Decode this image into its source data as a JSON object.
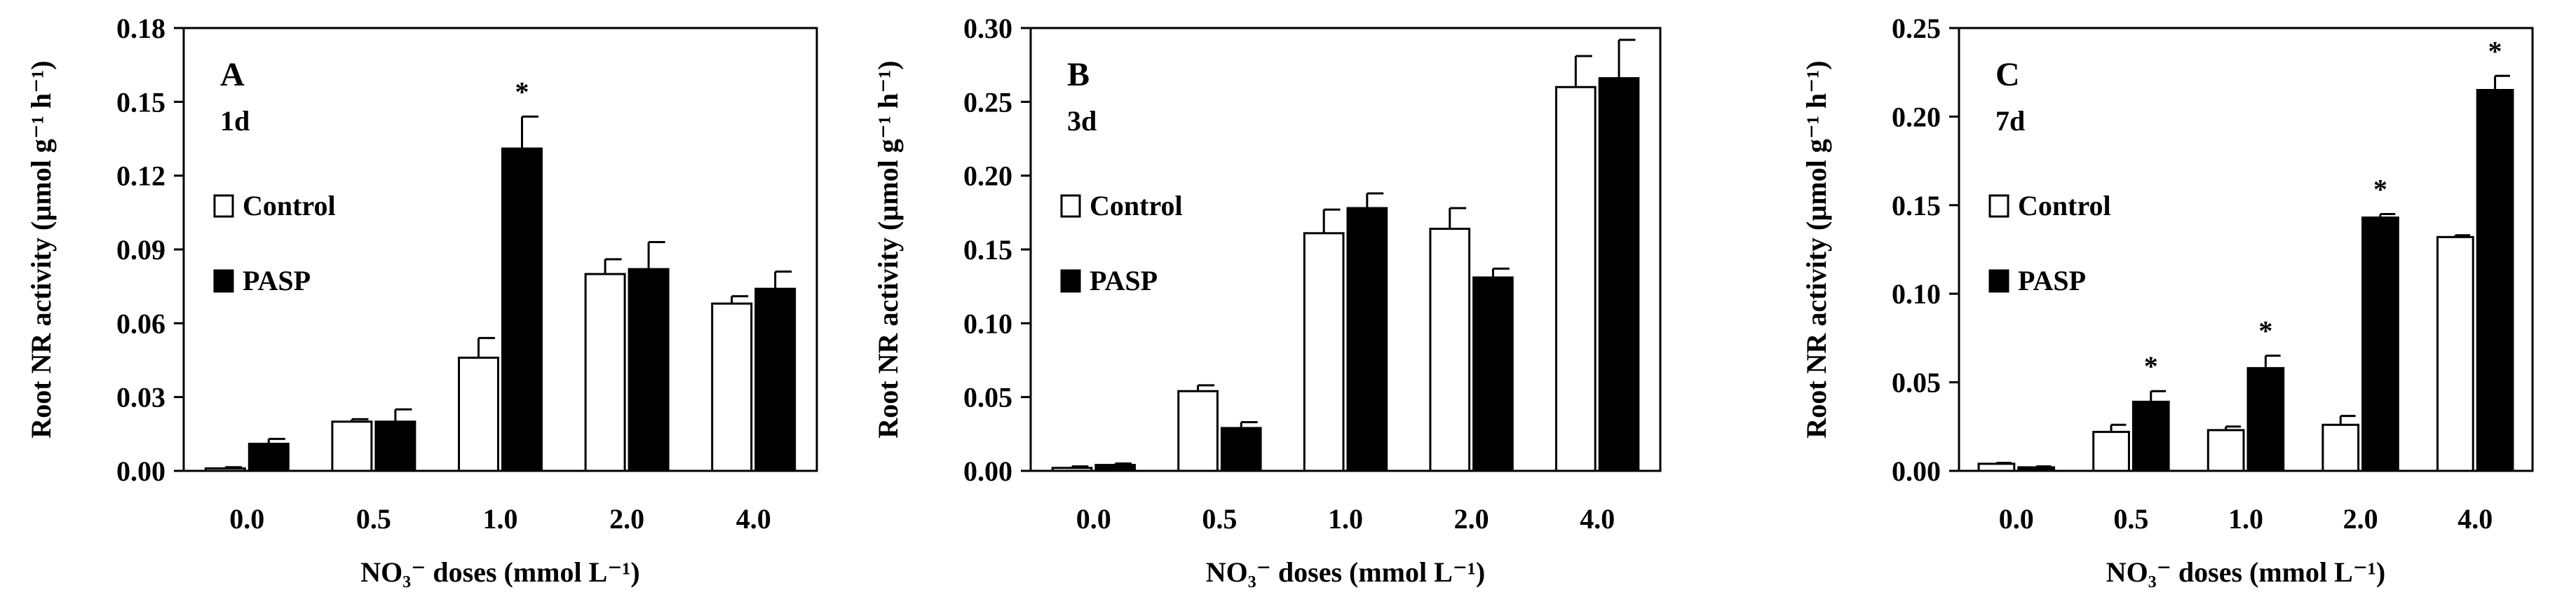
{
  "chart_data": [
    {
      "type": "bar",
      "panel_letter": "A",
      "time_label": "1d",
      "ylabel": "Root NR activity (µmol g⁻¹ h⁻¹)",
      "xlabel": "NO₃⁻ doses (mmol L⁻¹)",
      "ylim": [
        0,
        0.18
      ],
      "yticks": [
        "0.00",
        "0.03",
        "0.06",
        "0.09",
        "0.12",
        "0.15",
        "0.18"
      ],
      "categories": [
        "0.0",
        "0.5",
        "1.0",
        "2.0",
        "4.0"
      ],
      "series": [
        {
          "name": "Control",
          "values": [
            0.001,
            0.02,
            0.046,
            0.08,
            0.068
          ],
          "errors": [
            0.0005,
            0.001,
            0.008,
            0.006,
            0.003
          ]
        },
        {
          "name": "PASP",
          "values": [
            0.011,
            0.02,
            0.131,
            0.082,
            0.074
          ],
          "errors": [
            0.002,
            0.005,
            0.013,
            0.011,
            0.007
          ]
        }
      ],
      "significance": [
        "",
        "",
        "*",
        "",
        ""
      ],
      "legend": [
        "Control",
        "PASP"
      ]
    },
    {
      "type": "bar",
      "panel_letter": "B",
      "time_label": "3d",
      "ylabel": "Root NR activity (µmol g⁻¹ h⁻¹)",
      "xlabel": "NO₃⁻ doses (mmol L⁻¹)",
      "ylim": [
        0,
        0.3
      ],
      "yticks": [
        "0.00",
        "0.05",
        "0.10",
        "0.15",
        "0.20",
        "0.25",
        "0.30"
      ],
      "categories": [
        "0.0",
        "0.5",
        "1.0",
        "2.0",
        "4.0"
      ],
      "series": [
        {
          "name": "Control",
          "values": [
            0.002,
            0.054,
            0.161,
            0.164,
            0.26
          ],
          "errors": [
            0.001,
            0.004,
            0.016,
            0.014,
            0.021
          ]
        },
        {
          "name": "PASP",
          "values": [
            0.004,
            0.029,
            0.178,
            0.131,
            0.266
          ],
          "errors": [
            0.001,
            0.004,
            0.01,
            0.006,
            0.026
          ]
        }
      ],
      "significance": [
        "",
        "",
        "",
        "",
        ""
      ],
      "legend": [
        "Control",
        "PASP"
      ]
    },
    {
      "type": "bar",
      "panel_letter": "C",
      "time_label": "7d",
      "ylabel": "Root NR activity (µmol g⁻¹ h⁻¹)",
      "xlabel": "NO₃⁻ doses (mmol L⁻¹)",
      "ylim": [
        0,
        0.25
      ],
      "yticks": [
        "0.00",
        "0.05",
        "0.10",
        "0.15",
        "0.20",
        "0.25"
      ],
      "categories": [
        "0.0",
        "0.5",
        "1.0",
        "2.0",
        "4.0"
      ],
      "series": [
        {
          "name": "Control",
          "values": [
            0.004,
            0.022,
            0.023,
            0.026,
            0.132
          ],
          "errors": [
            0.0005,
            0.004,
            0.002,
            0.005,
            0.001
          ]
        },
        {
          "name": "PASP",
          "values": [
            0.002,
            0.039,
            0.058,
            0.143,
            0.215
          ],
          "errors": [
            0.0005,
            0.006,
            0.007,
            0.002,
            0.008
          ]
        }
      ],
      "significance": [
        "",
        "*",
        "*",
        "*",
        "*"
      ],
      "legend": [
        "Control",
        "PASP"
      ]
    }
  ]
}
